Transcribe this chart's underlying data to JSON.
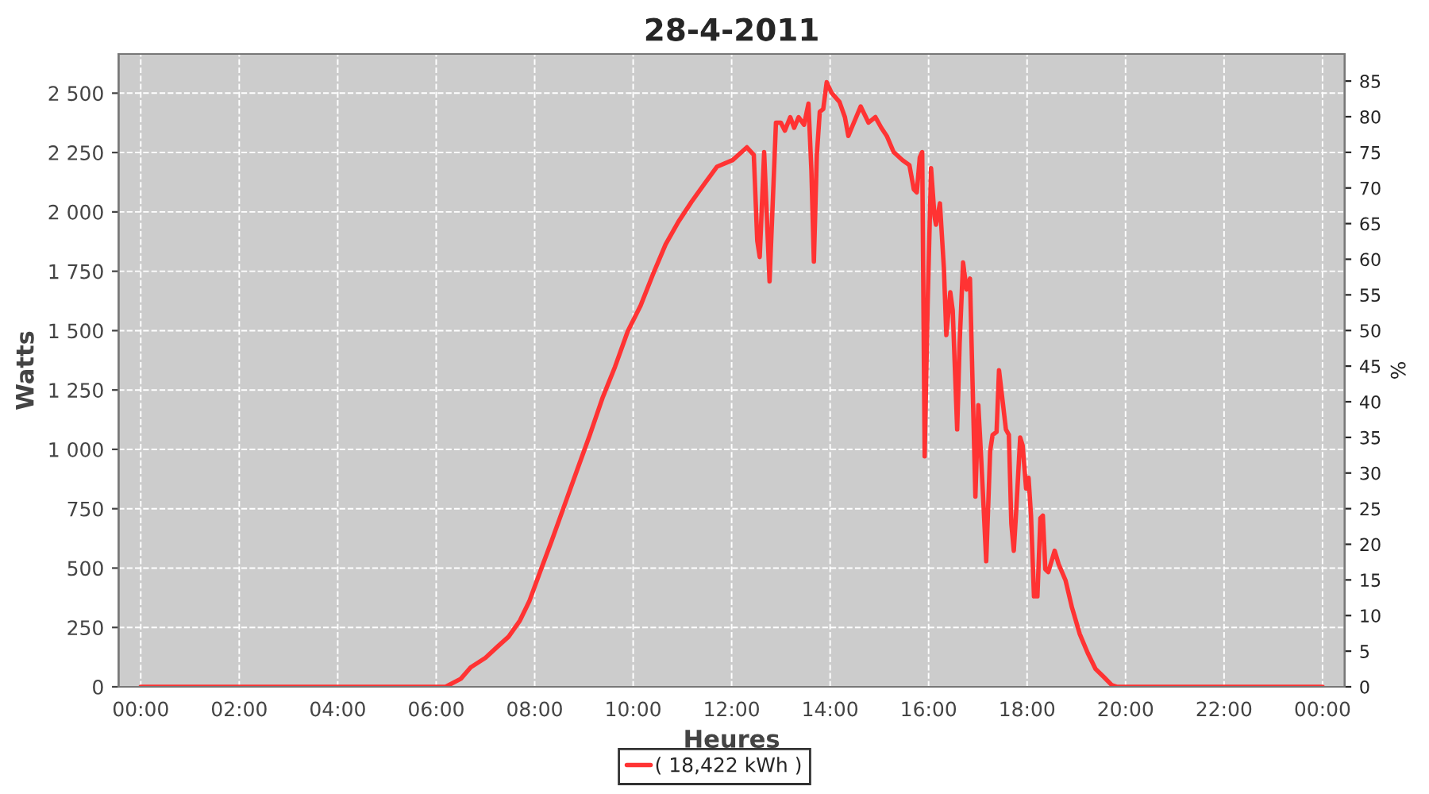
{
  "chart_data": {
    "type": "line",
    "title": "28-4-2011",
    "xlabel": "Heures",
    "ylabel": "Watts",
    "y2label": "%",
    "series": [
      {
        "name": "( 18,422 kWh )",
        "color": "#ff3333",
        "x": [
          0,
          6.19,
          6.5,
          6.7,
          7.0,
          7.25,
          7.47,
          7.7,
          7.89,
          8.12,
          8.34,
          8.6,
          8.86,
          9.12,
          9.38,
          9.63,
          9.89,
          10.15,
          10.41,
          10.66,
          10.92,
          11.18,
          11.44,
          11.7,
          12.02,
          12.31,
          12.45,
          12.52,
          12.57,
          12.66,
          12.77,
          12.9,
          13.0,
          13.08,
          13.19,
          13.27,
          13.36,
          13.47,
          13.56,
          13.62,
          13.67,
          13.73,
          13.79,
          13.86,
          13.93,
          14.03,
          14.19,
          14.3,
          14.37,
          14.46,
          14.62,
          14.78,
          14.92,
          15.04,
          15.15,
          15.29,
          15.47,
          15.61,
          15.7,
          15.76,
          15.82,
          15.87,
          15.92,
          15.98,
          16.05,
          16.12,
          16.15,
          16.23,
          16.31,
          16.36,
          16.44,
          16.49,
          16.58,
          16.63,
          16.7,
          16.77,
          16.84,
          16.95,
          17.01,
          17.06,
          17.12,
          17.17,
          17.25,
          17.3,
          17.38,
          17.43,
          17.5,
          17.57,
          17.63,
          17.68,
          17.73,
          17.78,
          17.86,
          17.91,
          17.98,
          18.03,
          18.08,
          18.14,
          18.21,
          18.27,
          18.32,
          18.37,
          18.43,
          18.56,
          18.64,
          18.78,
          18.91,
          19.07,
          19.23,
          19.39,
          19.56,
          19.72,
          19.82,
          24
        ],
        "values": [
          0,
          0,
          34,
          82,
          122,
          170,
          211,
          279,
          360,
          490,
          612,
          762,
          912,
          1061,
          1218,
          1347,
          1497,
          1605,
          1741,
          1864,
          1959,
          2041,
          2116,
          2190,
          2218,
          2272,
          2240,
          1878,
          1810,
          2252,
          1707,
          2376,
          2376,
          2342,
          2399,
          2354,
          2399,
          2367,
          2456,
          2172,
          1791,
          2240,
          2422,
          2433,
          2546,
          2501,
          2463,
          2399,
          2320,
          2365,
          2444,
          2376,
          2399,
          2354,
          2320,
          2252,
          2218,
          2197,
          2095,
          2082,
          2229,
          2252,
          971,
          1605,
          2184,
          1980,
          1946,
          2036,
          1764,
          1481,
          1662,
          1585,
          1084,
          1447,
          1787,
          1673,
          1719,
          801,
          1186,
          993,
          744,
          529,
          993,
          1061,
          1073,
          1333,
          1209,
          1084,
          1061,
          687,
          573,
          744,
          1050,
          1016,
          835,
          880,
          721,
          381,
          381,
          710,
          721,
          495,
          483,
          573,
          517,
          449,
          335,
          222,
          143,
          75,
          41,
          7,
          0,
          0
        ]
      }
    ],
    "xlim": [
      -0.45,
      24.45
    ],
    "xticks": [
      {
        "value": 0,
        "label": "00:00"
      },
      {
        "value": 2,
        "label": "02:00"
      },
      {
        "value": 4,
        "label": "04:00"
      },
      {
        "value": 6,
        "label": "06:00"
      },
      {
        "value": 8,
        "label": "08:00"
      },
      {
        "value": 10,
        "label": "10:00"
      },
      {
        "value": 12,
        "label": "12:00"
      },
      {
        "value": 14,
        "label": "14:00"
      },
      {
        "value": 16,
        "label": "16:00"
      },
      {
        "value": 18,
        "label": "18:00"
      },
      {
        "value": 20,
        "label": "20:00"
      },
      {
        "value": 22,
        "label": "22:00"
      },
      {
        "value": 24,
        "label": "00:00"
      }
    ],
    "ylim": [
      0,
      2665
    ],
    "yticks": [
      0,
      250,
      500,
      750,
      {
        "value": 1000,
        "label": "1 000"
      },
      {
        "value": 1250,
        "label": "1 250"
      },
      {
        "value": 1500,
        "label": "1 500"
      },
      {
        "value": 1750,
        "label": "1 750"
      },
      {
        "value": 2000,
        "label": "2 000"
      },
      {
        "value": 2250,
        "label": "2 250"
      },
      {
        "value": 2500,
        "label": "2 500"
      }
    ],
    "y2lim": [
      0,
      88.8
    ],
    "y2ticks": [
      0,
      5,
      10,
      15,
      20,
      25,
      30,
      35,
      40,
      45,
      50,
      55,
      60,
      65,
      70,
      75,
      80,
      85
    ],
    "grid": true,
    "legend": "bottom",
    "marker": "none",
    "line_style": "solid"
  }
}
